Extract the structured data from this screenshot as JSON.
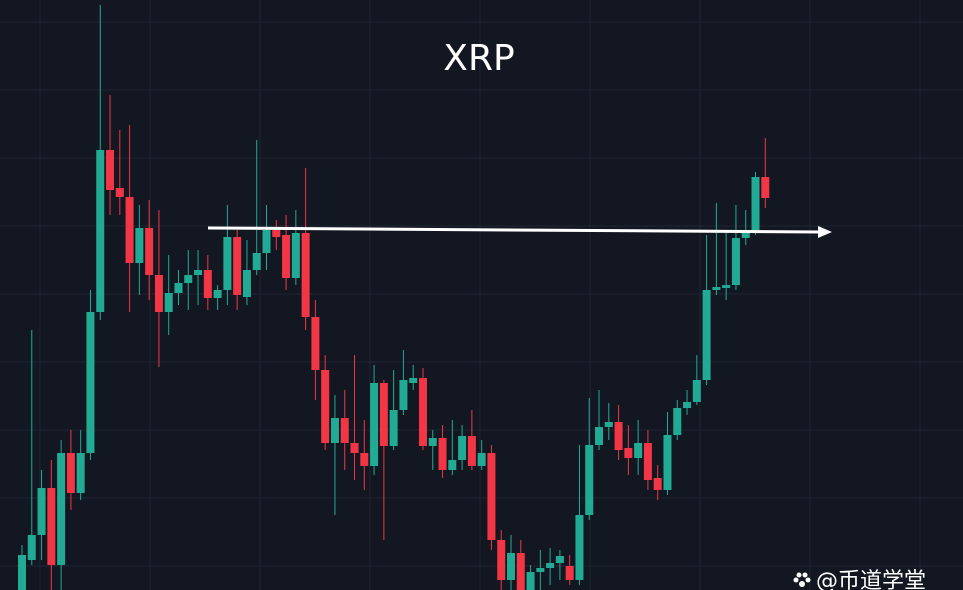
{
  "chart_data": {
    "type": "candlestick",
    "title": "XRP",
    "watermark": "@币道学堂",
    "up_color": "#22ab94",
    "down_color": "#f23645",
    "ylim": [
      0,
      590
    ],
    "open": [
      0,
      30,
      55,
      102,
      25,
      137,
      97,
      137,
      278,
      440,
      402,
      393,
      327,
      362,
      315,
      278,
      297,
      307,
      315,
      320,
      292,
      300,
      353,
      293,
      320,
      337,
      360,
      355,
      312,
      357,
      273,
      220,
      147,
      172,
      147,
      137,
      124,
      207,
      144,
      180,
      207,
      212,
      144,
      152,
      120,
      130,
      154,
      124,
      137,
      50,
      10,
      37,
      0,
      18,
      22,
      27,
      24,
      10,
      75,
      145,
      163,
      168,
      142,
      132,
      147,
      112,
      100,
      155,
      182,
      188,
      210,
      300,
      302,
      305,
      352,
      360,
      413
    ],
    "high": [
      45,
      260,
      120,
      130,
      150,
      160,
      160,
      300,
      585,
      495,
      460,
      465,
      385,
      390,
      380,
      335,
      320,
      340,
      340,
      335,
      305,
      385,
      360,
      350,
      450,
      385,
      370,
      375,
      380,
      422,
      290,
      235,
      195,
      200,
      235,
      170,
      225,
      210,
      220,
      240,
      225,
      222,
      160,
      165,
      170,
      165,
      180,
      150,
      145,
      60,
      55,
      50,
      25,
      40,
      42,
      40,
      35,
      145,
      192,
      200,
      187,
      185,
      165,
      170,
      160,
      125,
      178,
      190,
      200,
      235,
      355,
      387,
      360,
      385,
      380,
      418,
      452
    ],
    "low": [
      0,
      25,
      30,
      0,
      0,
      80,
      90,
      130,
      270,
      375,
      375,
      278,
      295,
      290,
      223,
      255,
      285,
      280,
      285,
      280,
      280,
      285,
      280,
      285,
      315,
      320,
      340,
      300,
      305,
      260,
      190,
      140,
      75,
      120,
      110,
      100,
      115,
      50,
      140,
      175,
      200,
      140,
      120,
      112,
      115,
      120,
      120,
      120,
      40,
      0,
      0,
      0,
      0,
      0,
      5,
      10,
      5,
      5,
      70,
      140,
      150,
      130,
      115,
      115,
      100,
      90,
      95,
      150,
      175,
      185,
      205,
      295,
      290,
      300,
      345,
      355,
      382
    ],
    "close": [
      35,
      55,
      102,
      25,
      137,
      97,
      137,
      278,
      440,
      400,
      393,
      327,
      362,
      315,
      278,
      297,
      307,
      315,
      320,
      292,
      300,
      353,
      295,
      320,
      337,
      360,
      353,
      312,
      357,
      273,
      220,
      147,
      172,
      147,
      137,
      124,
      207,
      144,
      180,
      210,
      212,
      144,
      152,
      120,
      130,
      154,
      124,
      137,
      50,
      10,
      37,
      0,
      18,
      22,
      27,
      34,
      10,
      75,
      145,
      163,
      168,
      140,
      132,
      147,
      110,
      100,
      155,
      182,
      188,
      210,
      300,
      303,
      305,
      352,
      360,
      413,
      392
    ]
  }
}
